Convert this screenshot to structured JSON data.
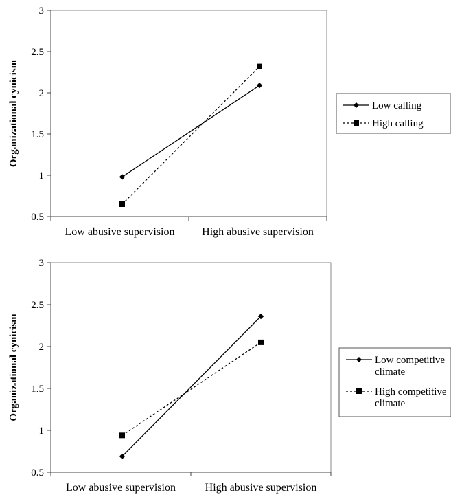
{
  "chart_data": [
    {
      "type": "line",
      "title": "",
      "xlabel": "",
      "ylabel": "Organizational cynicism",
      "ylim": [
        0.5,
        3
      ],
      "yticks": [
        "0.5",
        "1",
        "1.5",
        "2",
        "2.5",
        "3"
      ],
      "categories": [
        "Low abusive supervision",
        "High abusive supervision"
      ],
      "grid": false,
      "legend_position": "right",
      "series": [
        {
          "name": "Low calling",
          "values": [
            0.98,
            2.09
          ],
          "marker": "diamond",
          "line": "solid"
        },
        {
          "name": "High calling",
          "values": [
            0.65,
            2.32
          ],
          "marker": "square",
          "line": "dashed"
        }
      ]
    },
    {
      "type": "line",
      "title": "",
      "xlabel": "",
      "ylabel": "Organizational cynicism",
      "ylim": [
        0.5,
        3
      ],
      "yticks": [
        "0.5",
        "1",
        "1.5",
        "2",
        "2.5",
        "3"
      ],
      "categories": [
        "Low abusive supervision",
        "High abusive supervision"
      ],
      "grid": false,
      "legend_position": "right",
      "series": [
        {
          "name": "Low competitive climate",
          "values": [
            0.69,
            2.36
          ],
          "marker": "diamond",
          "line": "solid",
          "legend_lines": [
            "Low competitive",
            "climate"
          ]
        },
        {
          "name": "High competitive climate",
          "values": [
            0.94,
            2.05
          ],
          "marker": "square",
          "line": "dashed",
          "legend_lines": [
            "High competitive",
            "climate"
          ]
        }
      ]
    }
  ]
}
